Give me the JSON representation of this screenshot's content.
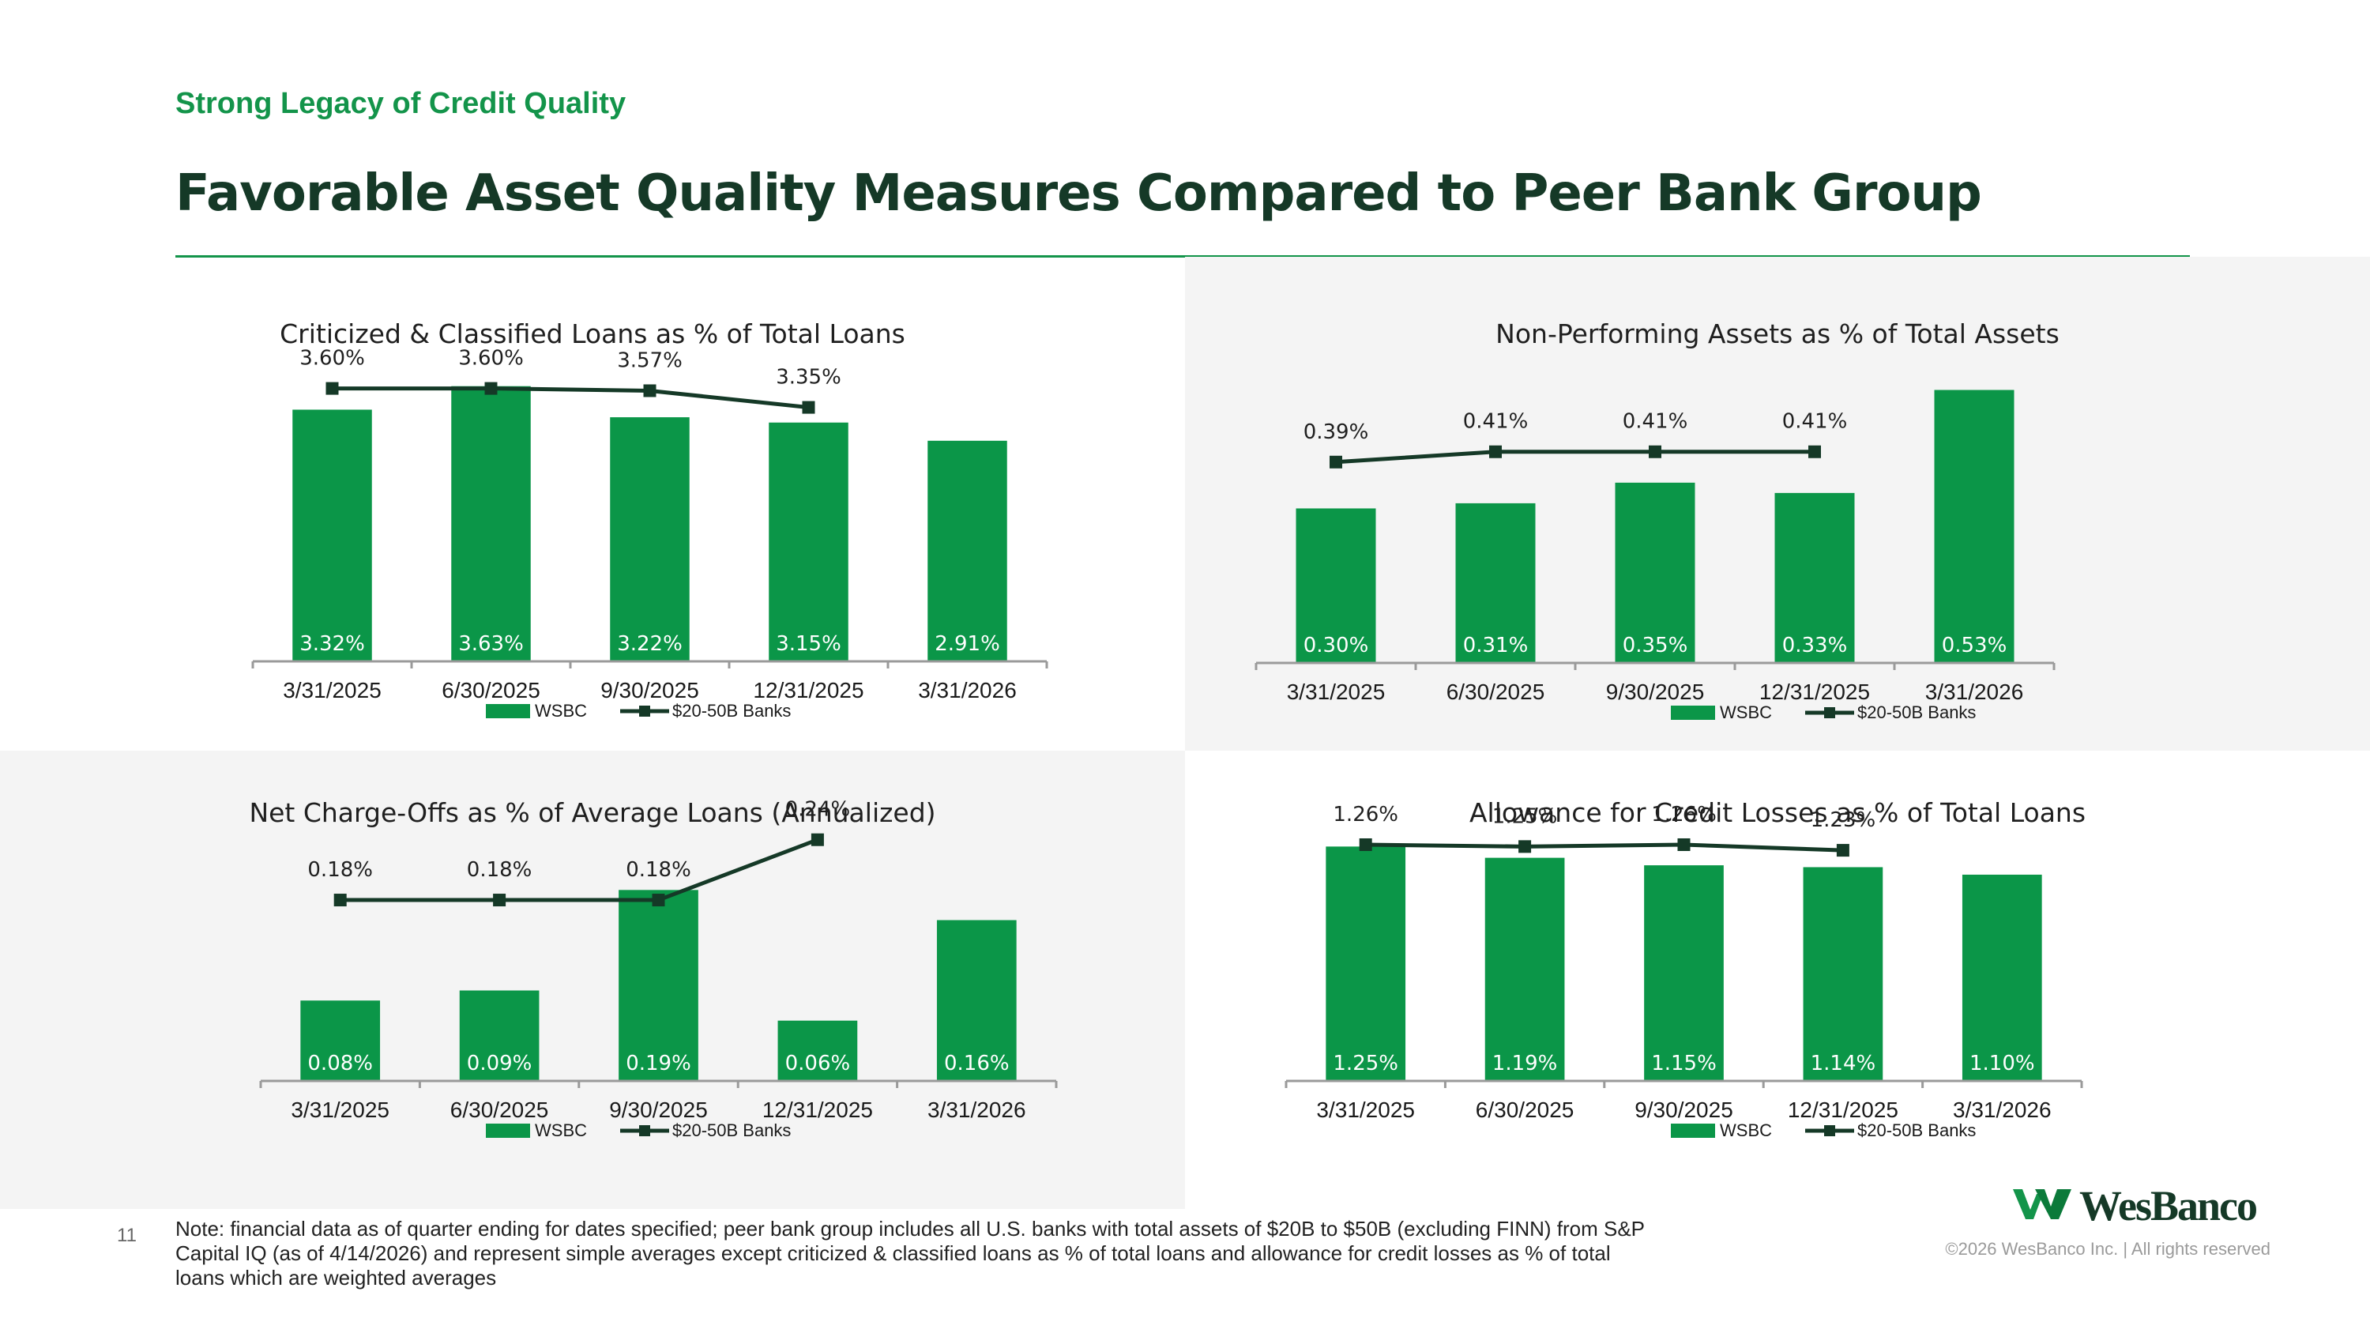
{
  "header": {
    "eyebrow": "Strong Legacy of Credit Quality",
    "title": "Favorable Asset Quality Measures Compared to Peer Bank Group"
  },
  "colors": {
    "wsbc_bar": "#0b9648",
    "peer_line": "#153927",
    "accent_green": "#13944a",
    "panel_shade": "#f4f4f4"
  },
  "chart_data": [
    {
      "type": "bar",
      "title": "Criticized & Classified Loans as % of Total Loans",
      "categories": [
        "3/31/2025",
        "6/30/2025",
        "9/30/2025",
        "12/31/2025",
        "3/31/2026"
      ],
      "series": [
        {
          "name": "WSBC",
          "type": "bar",
          "values": [
            3.32,
            3.63,
            3.22,
            3.15,
            2.91
          ],
          "labels": [
            "3.32%",
            "3.63%",
            "3.22%",
            "3.15%",
            "2.91%"
          ]
        },
        {
          "name": "$20-50B Banks",
          "type": "line",
          "values": [
            3.6,
            3.6,
            3.57,
            3.35,
            null
          ],
          "labels": [
            "3.60%",
            "3.60%",
            "3.57%",
            "3.35%",
            ""
          ]
        }
      ],
      "ylim": [
        0,
        3.7
      ],
      "legend": "bottom",
      "grid": false
    },
    {
      "type": "bar",
      "title": "Non-Performing Assets as % of Total Assets",
      "categories": [
        "3/31/2025",
        "6/30/2025",
        "9/30/2025",
        "12/31/2025",
        "3/31/2026"
      ],
      "series": [
        {
          "name": "WSBC",
          "type": "bar",
          "values": [
            0.3,
            0.31,
            0.35,
            0.33,
            0.53
          ],
          "labels": [
            "0.30%",
            "0.31%",
            "0.35%",
            "0.33%",
            "0.53%"
          ]
        },
        {
          "name": "$20-50B Banks",
          "type": "line",
          "values": [
            0.39,
            0.41,
            0.41,
            0.41,
            null
          ],
          "labels": [
            "0.39%",
            "0.41%",
            "0.41%",
            "0.41%",
            ""
          ]
        }
      ],
      "ylim": [
        0,
        0.54
      ],
      "legend": "bottom",
      "grid": false
    },
    {
      "type": "bar",
      "title": "Net Charge-Offs as % of Average Loans (Annualized)",
      "categories": [
        "3/31/2025",
        "6/30/2025",
        "9/30/2025",
        "12/31/2025",
        "3/31/2026"
      ],
      "series": [
        {
          "name": "WSBC",
          "type": "bar",
          "values": [
            0.08,
            0.09,
            0.19,
            0.06,
            0.16
          ],
          "labels": [
            "0.08%",
            "0.09%",
            "0.19%",
            "0.06%",
            "0.16%"
          ]
        },
        {
          "name": "$20-50B Banks",
          "type": "line",
          "values": [
            0.18,
            0.18,
            0.18,
            0.24,
            null
          ],
          "labels": [
            "0.18%",
            "0.18%",
            "0.18%",
            "0.24%",
            ""
          ]
        }
      ],
      "ylim": [
        0,
        0.25
      ],
      "legend": "bottom",
      "grid": false
    },
    {
      "type": "bar",
      "title": "Allowance for Credit Losses as % of Total Loans",
      "categories": [
        "3/31/2025",
        "6/30/2025",
        "9/30/2025",
        "12/31/2025",
        "3/31/2026"
      ],
      "series": [
        {
          "name": "WSBC",
          "type": "bar",
          "values": [
            1.25,
            1.19,
            1.15,
            1.14,
            1.1
          ],
          "labels": [
            "1.25%",
            "1.19%",
            "1.15%",
            "1.14%",
            "1.10%"
          ]
        },
        {
          "name": "$20-50B Banks",
          "type": "line",
          "values": [
            1.26,
            1.25,
            1.26,
            1.23,
            null
          ],
          "labels": [
            "1.26%",
            "1.25%",
            "1.26%",
            "1.23%",
            ""
          ]
        }
      ],
      "ylim": [
        0,
        1.34
      ],
      "legend": "bottom",
      "grid": false
    }
  ],
  "footer": {
    "page_number": "11",
    "note": "Note: financial data as of quarter ending for dates specified; peer bank group includes all U.S. banks with total assets of $20B to $50B (excluding FINN) from S&P Capital IQ (as of 4/14/2026) and represent simple averages except criticized & classified loans as % of total loans and allowance for credit losses as % of total loans which are weighted averages",
    "logo_text": "WesBanco",
    "copyright": "©2026 WesBanco Inc.  |  All rights reserved"
  }
}
